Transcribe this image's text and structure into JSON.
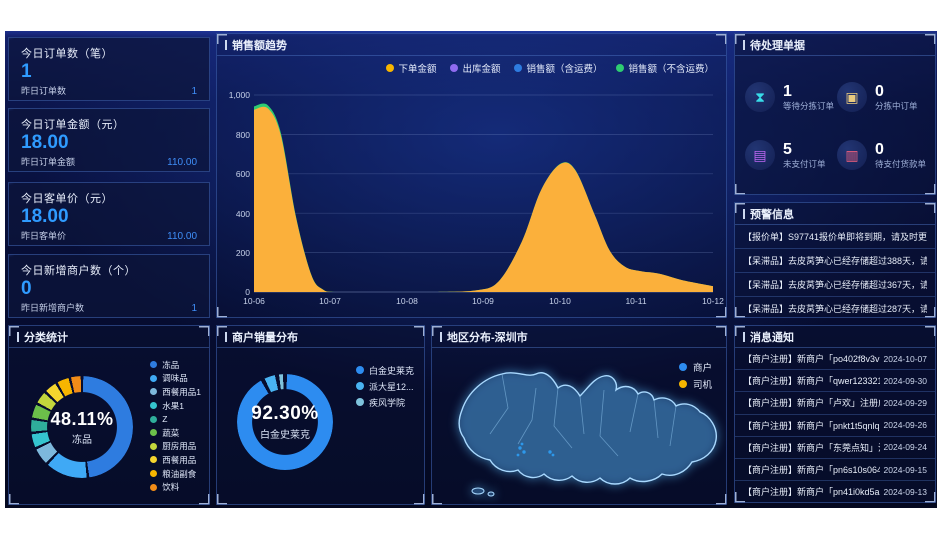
{
  "cards": [
    {
      "title": "今日订单数（笔）",
      "value": "1",
      "sub_label": "昨日订单数",
      "sub_value": "1"
    },
    {
      "title": "今日订单金额（元）",
      "value": "18.00",
      "sub_label": "昨日订单金额",
      "sub_value": "110.00"
    },
    {
      "title": "今日客单价（元）",
      "value": "18.00",
      "sub_label": "昨日客单价",
      "sub_value": "110.00"
    },
    {
      "title": "今日新增商户数（个）",
      "value": "0",
      "sub_label": "昨日新增商户数",
      "sub_value": "1"
    }
  ],
  "pending": {
    "title": "待处理单据",
    "items": [
      {
        "value": "1",
        "label": "等待分拣订单",
        "icon": "hourglass-icon",
        "color": "#38dce8"
      },
      {
        "value": "0",
        "label": "分拣中订单",
        "icon": "box-icon",
        "color": "#e8c97e"
      },
      {
        "value": "5",
        "label": "未支付订单",
        "icon": "wallet-icon",
        "color": "#bd66f2"
      },
      {
        "value": "0",
        "label": "待支付货款单",
        "icon": "bill-icon",
        "color": "#f2607d"
      }
    ]
  },
  "alerts": {
    "title": "预警信息",
    "items": [
      "【报价单】S97741报价单即将到期，请及时更新报价！",
      "【呆滞品】去皮莴笋心已经存储超过388天，请留意！（...",
      "【呆滞品】去皮莴笋心已经存储超过367天，请留意！（...",
      "【呆滞品】去皮莴笋心已经存储超过287天，请留意！（..."
    ]
  },
  "messages": {
    "title": "消息通知",
    "items": [
      {
        "text": "【商户注册】新商户「po402f8v3v70pr238k...",
        "date": "2024-10-07"
      },
      {
        "text": "【商户注册】新商户「qwer12332100」注册...",
        "date": "2024-09-30"
      },
      {
        "text": "【商户注册】新商户「卢欢」注册成功，请...",
        "date": "2024-09-29"
      },
      {
        "text": "【商户注册】新商户「pnkt1t5qnlq2h11o2p...",
        "date": "2024-09-26"
      },
      {
        "text": "【商户注册】新商户「东莞点知」注册成功...",
        "date": "2024-09-24"
      },
      {
        "text": "【商户注册】新商户「pn6s10s064c7b7ul3ll...",
        "date": "2024-09-15"
      },
      {
        "text": "【商户注册】新商户「pn41i0kd5a5nvkpepvj...",
        "date": "2024-09-13"
      }
    ]
  },
  "map": {
    "title": "地区分布-深圳市",
    "legend": [
      {
        "label": "商户",
        "color": "#2d8cf0"
      },
      {
        "label": "司机",
        "color": "#f5b500"
      }
    ]
  },
  "chart_data": [
    {
      "type": "area",
      "title": "销售额趋势",
      "xlabel": "",
      "ylabel": "",
      "ylim": [
        0,
        1000
      ],
      "grid": true,
      "legend_position": "top-right",
      "x_labels": [
        "10-06",
        "10-07",
        "10-08",
        "10-09",
        "10-10",
        "10-11",
        "10-12"
      ],
      "y_ticks": [
        "1,000",
        "800",
        "600",
        "400",
        "200",
        "0"
      ],
      "legend": [
        {
          "name": "下单金额",
          "color": "#f7b500"
        },
        {
          "name": "出库金额",
          "color": "#8f6bf0"
        },
        {
          "name": "销售额（含运费）",
          "color": "#2e7ce0"
        },
        {
          "name": "销售额（不含运费）",
          "color": "#2ecc71"
        }
      ],
      "series": [
        {
          "name": "下单金额",
          "color": "#fbb03b",
          "points": [
            [
              0,
              925
            ],
            [
              0.18,
              932
            ],
            [
              0.35,
              795
            ],
            [
              0.55,
              375
            ],
            [
              0.75,
              85
            ],
            [
              0.9,
              12
            ],
            [
              1.05,
              0
            ],
            [
              1.5,
              0
            ],
            [
              2.0,
              0
            ],
            [
              2.4,
              0
            ],
            [
              2.9,
              8
            ],
            [
              3.2,
              55
            ],
            [
              3.5,
              255
            ],
            [
              3.75,
              515
            ],
            [
              4.0,
              648
            ],
            [
              4.2,
              618
            ],
            [
              4.45,
              395
            ],
            [
              4.65,
              210
            ],
            [
              4.85,
              128
            ],
            [
              5.05,
              106
            ],
            [
              5.3,
              93
            ],
            [
              5.6,
              60
            ],
            [
              6,
              30
            ]
          ]
        },
        {
          "name": "销售额（不含运费）",
          "color": "#2ecc71",
          "points": [
            [
              0,
              942
            ],
            [
              0.18,
              948
            ],
            [
              0.35,
              808
            ],
            [
              0.55,
              380
            ],
            [
              0.75,
              87
            ],
            [
              0.9,
              13
            ],
            [
              1.05,
              0
            ],
            [
              1.5,
              0
            ],
            [
              2.0,
              0
            ],
            [
              2.4,
              0
            ],
            [
              2.9,
              8
            ],
            [
              3.2,
              55
            ],
            [
              3.5,
              255
            ],
            [
              3.75,
              515
            ],
            [
              4.0,
              650
            ],
            [
              4.2,
              620
            ],
            [
              4.45,
              395
            ],
            [
              4.65,
              210
            ],
            [
              4.85,
              128
            ],
            [
              5.05,
              106
            ],
            [
              5.3,
              93
            ],
            [
              5.6,
              60
            ],
            [
              6,
              30
            ]
          ]
        }
      ]
    },
    {
      "type": "pie",
      "title": "分类统计",
      "center_value": "48.11%",
      "center_label": "冻品",
      "segments": [
        {
          "label": "冻品",
          "value": 48.11,
          "color": "#2e7ce0"
        },
        {
          "label": "调味品",
          "value": 14,
          "color": "#3fa9f5"
        },
        {
          "label": "西餐用品1",
          "value": 6,
          "color": "#7db8dc"
        },
        {
          "label": "水果1",
          "value": 5,
          "color": "#35c4cf"
        },
        {
          "label": "Z",
          "value": 4.5,
          "color": "#2fae9b"
        },
        {
          "label": "蔬菜",
          "value": 5,
          "color": "#6cc04a"
        },
        {
          "label": "厨房用品",
          "value": 4.5,
          "color": "#c3d63c"
        },
        {
          "label": "西餐用品",
          "value": 4.5,
          "color": "#f5d52e"
        },
        {
          "label": "粮油副食",
          "value": 4.5,
          "color": "#f7b500"
        },
        {
          "label": "饮料",
          "value": 3.89,
          "color": "#f28c18"
        }
      ]
    },
    {
      "type": "pie",
      "title": "商户销量分布",
      "center_value": "92.30%",
      "center_label": "白金史莱克",
      "segments": [
        {
          "label": "白金史莱克",
          "value": 92.3,
          "color": "#2d8cf0"
        },
        {
          "label": "派大星12...",
          "value": 5,
          "color": "#49b3f2"
        },
        {
          "label": "疾风学院",
          "value": 2.7,
          "color": "#7fc3dd"
        }
      ]
    }
  ]
}
